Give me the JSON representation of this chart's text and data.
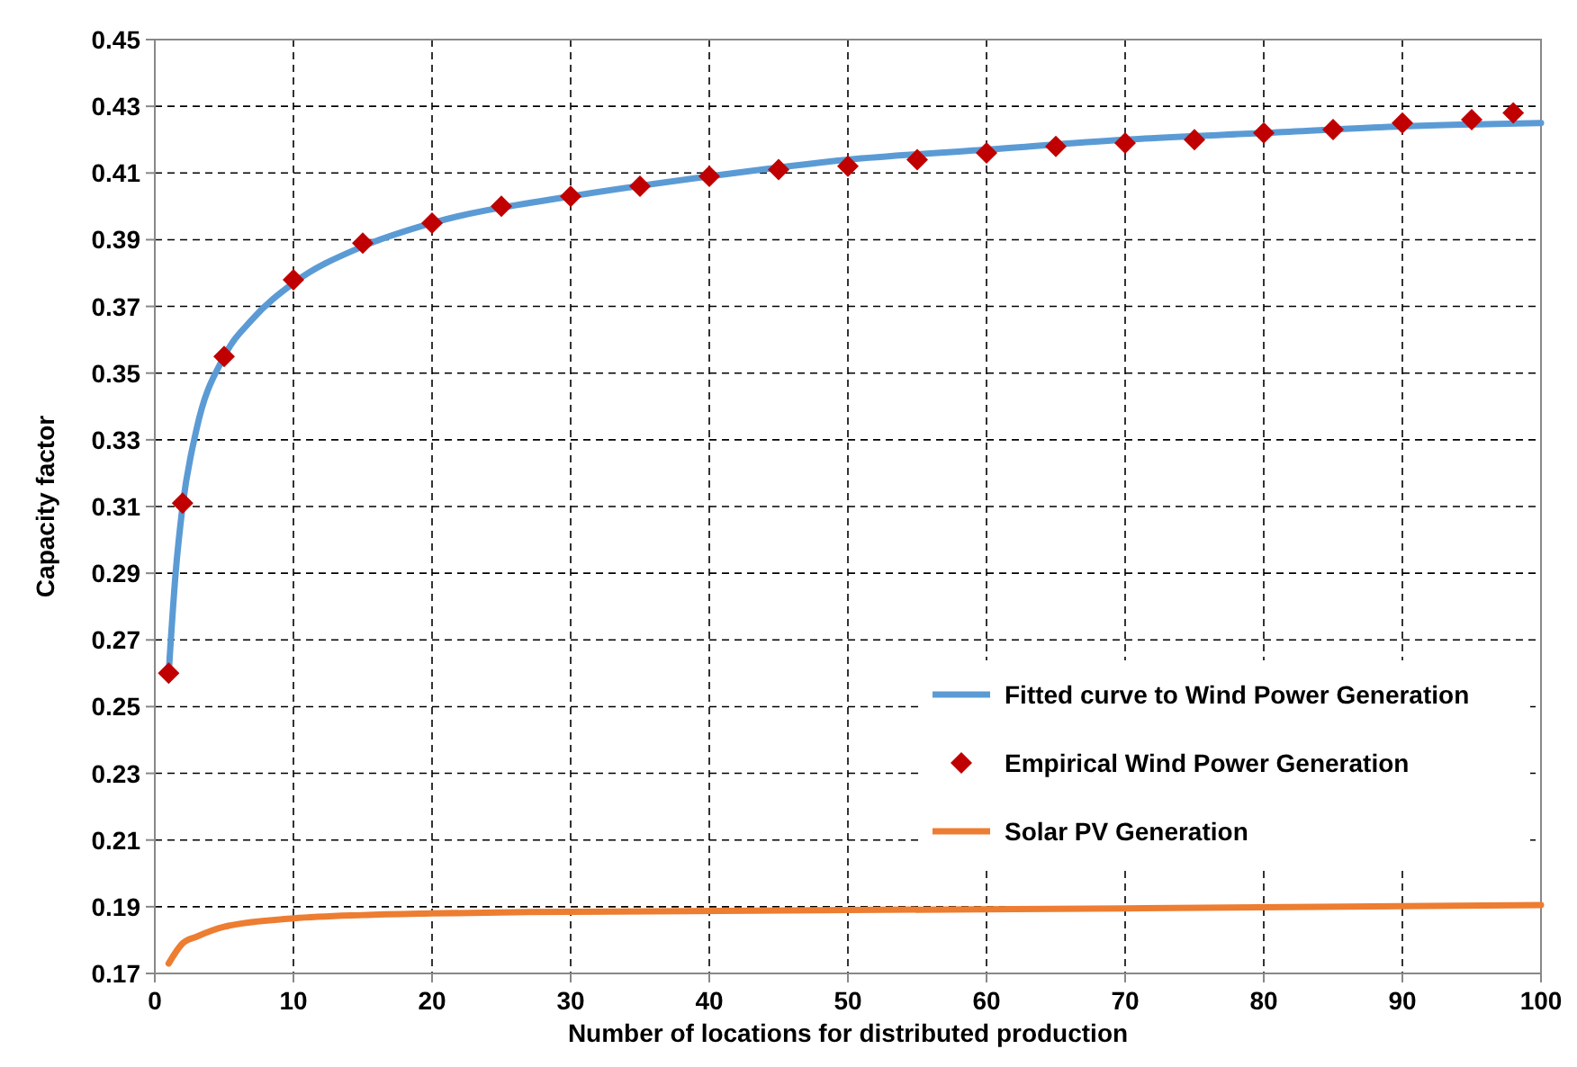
{
  "chart_data": {
    "type": "line",
    "xlabel": "Number of locations for distributed production",
    "ylabel": "Capacity factor",
    "xlim": [
      0,
      100
    ],
    "xticks": [
      0,
      10,
      20,
      30,
      40,
      50,
      60,
      70,
      80,
      90,
      100
    ],
    "ylim": [
      0.17,
      0.45
    ],
    "yticks": [
      0.17,
      0.19,
      0.21,
      0.23,
      0.25,
      0.27,
      0.29,
      0.31,
      0.33,
      0.35,
      0.37,
      0.39,
      0.41,
      0.43,
      0.45
    ],
    "grid": true,
    "legend": "bottom right",
    "line_style": "solid",
    "series": [
      {
        "name": "Fitted curve to Wind Power Generation",
        "color": "#5b9bd5",
        "x": [
          1,
          1.5,
          2,
          3,
          5,
          7,
          10,
          15,
          20,
          30,
          40,
          50,
          60,
          70,
          80,
          90,
          100
        ],
        "values": [
          0.26,
          0.29,
          0.31,
          0.333,
          0.355,
          0.366,
          0.377,
          0.388,
          0.395,
          0.403,
          0.409,
          0.414,
          0.417,
          0.42,
          0.422,
          0.424,
          0.425
        ]
      },
      {
        "name": "Empirical Wind Power Generation",
        "type": "scatter",
        "marker": "diamond",
        "color": "#c00000",
        "x": [
          1,
          2,
          5,
          10,
          15,
          20,
          25,
          30,
          35,
          40,
          45,
          50,
          55,
          60,
          65,
          70,
          75,
          80,
          85,
          90,
          95,
          98
        ],
        "values": [
          0.26,
          0.311,
          0.355,
          0.378,
          0.389,
          0.395,
          0.4,
          0.403,
          0.406,
          0.409,
          0.411,
          0.412,
          0.414,
          0.416,
          0.418,
          0.419,
          0.42,
          0.422,
          0.423,
          0.425,
          0.426,
          0.428
        ]
      },
      {
        "name": "Solar PV Generation",
        "color": "#ed7d31",
        "x": [
          1,
          2,
          3,
          5,
          10,
          15,
          20,
          30,
          50,
          70,
          100
        ],
        "values": [
          0.173,
          0.179,
          0.181,
          0.184,
          0.1865,
          0.1875,
          0.188,
          0.1885,
          0.189,
          0.1895,
          0.1905
        ]
      }
    ]
  }
}
